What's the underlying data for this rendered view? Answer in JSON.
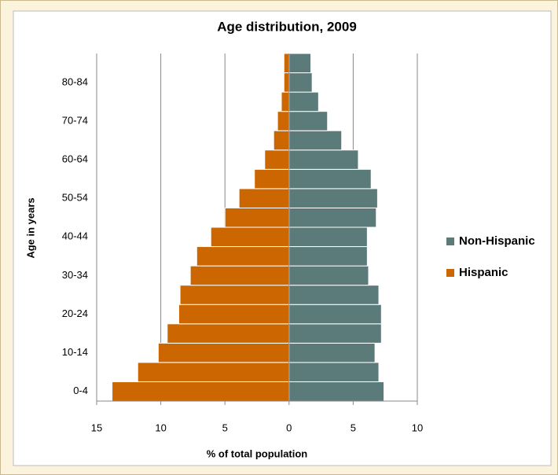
{
  "chart_data": {
    "type": "pyramid",
    "title": "Age distribution,  2009",
    "x_label": "% of total population",
    "y_label": "Age in years",
    "categories": [
      "0-4",
      null,
      "10-14",
      null,
      "20-24",
      null,
      "30-34",
      null,
      "40-44",
      null,
      "50-54",
      null,
      "60-64",
      null,
      "70-74",
      null,
      "80-84",
      null
    ],
    "series": [
      {
        "name": "Non-Hispanic",
        "color": "#5b7b7a",
        "values": [
          7.4,
          7.0,
          6.7,
          7.2,
          7.2,
          7.0,
          6.2,
          6.1,
          6.1,
          6.8,
          6.9,
          6.4,
          5.4,
          4.1,
          3.0,
          2.3,
          1.8,
          1.7
        ]
      },
      {
        "name": "Hispanic",
        "color": "#cc6600",
        "values": [
          -13.8,
          -11.8,
          -10.2,
          -9.5,
          -8.6,
          -8.5,
          -7.7,
          -7.2,
          -6.1,
          -5.0,
          -3.9,
          -2.7,
          -1.9,
          -1.2,
          -0.9,
          -0.6,
          -0.4,
          -0.4
        ]
      }
    ],
    "xlim": [
      -15,
      10
    ],
    "xticks": [
      {
        "value": -15,
        "label": "15"
      },
      {
        "value": -10,
        "label": "10"
      },
      {
        "value": -5,
        "label": "5"
      },
      0,
      5,
      10
    ],
    "grid": true,
    "legend": "right"
  }
}
